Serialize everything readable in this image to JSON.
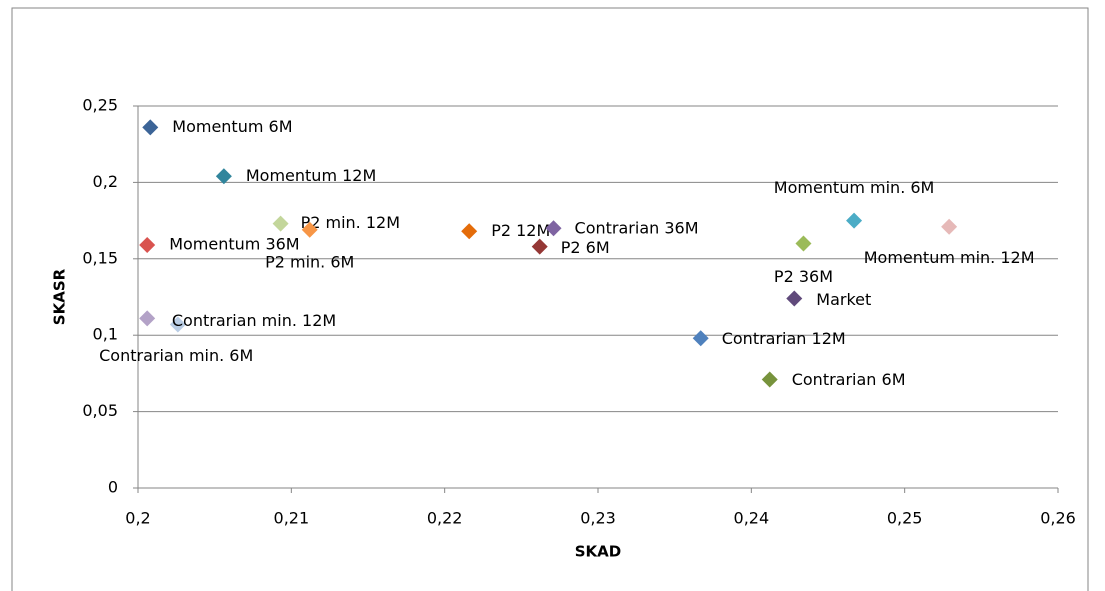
{
  "chart_data": {
    "type": "scatter",
    "x_label": "SKAD",
    "y_label": "SKASR",
    "xlim": [
      0.2,
      0.26
    ],
    "xticks": [
      {
        "value": 0.2,
        "label": "0,2"
      },
      {
        "value": 0.21,
        "label": "0,21"
      },
      {
        "value": 0.22,
        "label": "0,22"
      },
      {
        "value": 0.23,
        "label": "0,23"
      },
      {
        "value": 0.24,
        "label": "0,24"
      },
      {
        "value": 0.25,
        "label": "0,25"
      },
      {
        "value": 0.26,
        "label": "0,26"
      }
    ],
    "ylim": [
      0,
      0.25
    ],
    "yticks": [
      0,
      {
        "value": 0.05,
        "label": "0,05"
      },
      {
        "value": 0.1,
        "label": "0,1"
      },
      {
        "value": 0.15,
        "label": "0,15"
      },
      {
        "value": 0.2,
        "label": "0,2"
      },
      {
        "value": 0.25,
        "label": "0,25"
      }
    ],
    "grid": true,
    "series": [
      {
        "name": "Momentum 6M",
        "color": "#3c6497",
        "x": [
          0.2008
        ],
        "values": [
          0.236
        ]
      },
      {
        "name": "Momentum 12M",
        "color": "#31859c",
        "x": [
          0.2056
        ],
        "values": [
          0.204
        ]
      },
      {
        "name": "P2 min. 12M",
        "color": "#c3d69b",
        "x": [
          0.2093
        ],
        "values": [
          0.173
        ]
      },
      {
        "name": "P2 min. 6M",
        "color": "#f79646",
        "x": [
          0.2112
        ],
        "values": [
          0.169
        ]
      },
      {
        "name": "Momentum 36M",
        "color": "#d9534f",
        "x": [
          0.2006
        ],
        "values": [
          0.159
        ]
      },
      {
        "name": "Contrarian min. 6M",
        "color": "#b3a2c7",
        "x": [
          0.2006
        ],
        "values": [
          0.111
        ]
      },
      {
        "name": "Contrarian min. 12M",
        "color": "#b9cde5",
        "x": [
          0.2026
        ],
        "values": [
          0.107
        ]
      },
      {
        "name": "P2 12M",
        "color": "#e46c0a",
        "x": [
          0.2216
        ],
        "values": [
          0.168
        ]
      },
      {
        "name": "P2 6M",
        "color": "#953735",
        "x": [
          0.2262
        ],
        "values": [
          0.158
        ]
      },
      {
        "name": "Contrarian 36M",
        "color": "#7f64a2",
        "x": [
          0.2271
        ],
        "values": [
          0.17
        ]
      },
      {
        "name": "Contrarian 12M",
        "color": "#4f81bd",
        "x": [
          0.2367
        ],
        "values": [
          0.098
        ]
      },
      {
        "name": "Contrarian 6M",
        "color": "#77933c",
        "x": [
          0.2412
        ],
        "values": [
          0.071
        ]
      },
      {
        "name": "Market",
        "color": "#604a7b",
        "x": [
          0.2428
        ],
        "values": [
          0.124
        ]
      },
      {
        "name": "P2 36M",
        "color": "#9bbb59",
        "x": [
          0.2434
        ],
        "values": [
          0.16
        ]
      },
      {
        "name": "Momentum min. 6M",
        "color": "#4bacc6",
        "x": [
          0.2467
        ],
        "values": [
          0.175
        ]
      },
      {
        "name": "Momentum min. 12M",
        "color": "#e6b9b8",
        "x": [
          0.2529
        ],
        "values": [
          0.171
        ]
      }
    ]
  }
}
